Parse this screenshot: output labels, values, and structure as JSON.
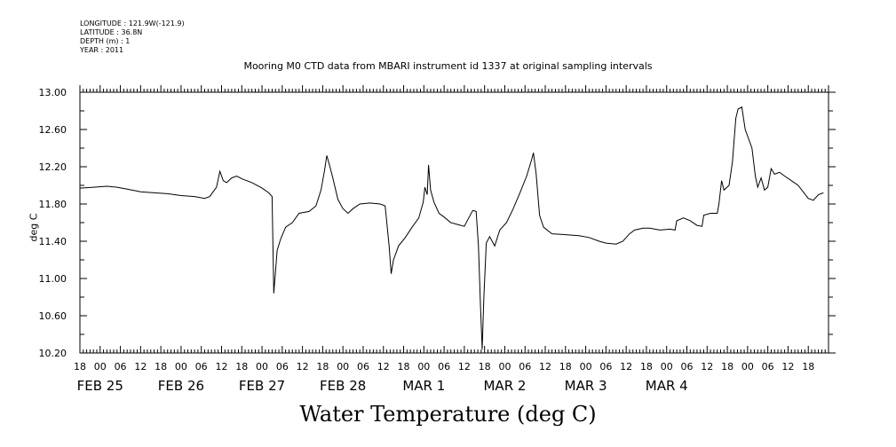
{
  "meta": {
    "longitude": "LONGITUDE : 121.9W(-121.9)",
    "latitude": "LATITUDE : 36.8N",
    "depth": "DEPTH (m) : 1",
    "year": "YEAR : 2011"
  },
  "chart_data": {
    "type": "line",
    "title": "Mooring M0 CTD data from MBARI instrument id 1337 at original sampling intervals",
    "xlabel": "Water Temperature (deg C)",
    "ylabel": "deg C",
    "ylim": [
      10.2,
      13.0
    ],
    "yticks": [
      "10.20",
      "10.60",
      "11.00",
      "11.40",
      "11.80",
      "12.20",
      "12.60",
      "13.00"
    ],
    "x_unit": "hours since 2011-02-24 18:00",
    "xlim": [
      0,
      222
    ],
    "hour_ticks": [
      "18",
      "00",
      "06",
      "12",
      "18",
      "00",
      "06",
      "12",
      "18",
      "00",
      "06",
      "12",
      "18",
      "00",
      "06",
      "12",
      "18",
      "00",
      "06",
      "12",
      "18",
      "00",
      "06",
      "12",
      "18",
      "00",
      "06",
      "12",
      "18",
      "00",
      "06",
      "12",
      "18",
      "00",
      "06",
      "12",
      "18"
    ],
    "date_labels": [
      {
        "label": "FEB 25",
        "x": 6
      },
      {
        "label": "FEB 26",
        "x": 30
      },
      {
        "label": "FEB 27",
        "x": 54
      },
      {
        "label": "FEB 28",
        "x": 78
      },
      {
        "label": "MAR  1",
        "x": 102
      },
      {
        "label": "MAR  2",
        "x": 126
      },
      {
        "label": "MAR  3",
        "x": 150
      },
      {
        "label": "MAR  4",
        "x": 174
      }
    ],
    "series": [
      {
        "values": [
          [
            0,
            11.97
          ],
          [
            4,
            11.98
          ],
          [
            8,
            11.99
          ],
          [
            11,
            11.98
          ],
          [
            14,
            11.96
          ],
          [
            18,
            11.93
          ],
          [
            22,
            11.92
          ],
          [
            26,
            11.91
          ],
          [
            30,
            11.89
          ],
          [
            34,
            11.88
          ],
          [
            37,
            11.86
          ],
          [
            38.5,
            11.88
          ],
          [
            40.5,
            11.98
          ],
          [
            41.5,
            12.15
          ],
          [
            42.5,
            12.05
          ],
          [
            43.5,
            12.03
          ],
          [
            45,
            12.08
          ],
          [
            46.5,
            12.1
          ],
          [
            48,
            12.07
          ],
          [
            51,
            12.03
          ],
          [
            54,
            11.97
          ],
          [
            56,
            11.92
          ],
          [
            57,
            11.88
          ],
          [
            57.5,
            10.84
          ],
          [
            58.5,
            11.3
          ],
          [
            59.5,
            11.42
          ],
          [
            61,
            11.55
          ],
          [
            63,
            11.6
          ],
          [
            65,
            11.7
          ],
          [
            68,
            11.72
          ],
          [
            70,
            11.78
          ],
          [
            71.5,
            11.95
          ],
          [
            72.5,
            12.15
          ],
          [
            73.2,
            12.32
          ],
          [
            74,
            12.22
          ],
          [
            75,
            12.08
          ],
          [
            76.5,
            11.85
          ],
          [
            78,
            11.75
          ],
          [
            79.5,
            11.7
          ],
          [
            81,
            11.75
          ],
          [
            83,
            11.8
          ],
          [
            86,
            11.81
          ],
          [
            89,
            11.8
          ],
          [
            90.5,
            11.78
          ],
          [
            91,
            11.6
          ],
          [
            91.7,
            11.35
          ],
          [
            92.3,
            11.05
          ],
          [
            93,
            11.2
          ],
          [
            94.5,
            11.35
          ],
          [
            96.5,
            11.44
          ],
          [
            98.5,
            11.55
          ],
          [
            100.5,
            11.65
          ],
          [
            101.8,
            11.82
          ],
          [
            102.3,
            11.98
          ],
          [
            103,
            11.9
          ],
          [
            103.4,
            12.22
          ],
          [
            104,
            11.95
          ],
          [
            105,
            11.82
          ],
          [
            106.5,
            11.7
          ],
          [
            108,
            11.66
          ],
          [
            110,
            11.6
          ],
          [
            112,
            11.58
          ],
          [
            114,
            11.56
          ],
          [
            115,
            11.63
          ],
          [
            116.5,
            11.73
          ],
          [
            117.5,
            11.72
          ],
          [
            118.2,
            11.35
          ],
          [
            118.8,
            10.7
          ],
          [
            119.3,
            10.24
          ],
          [
            119.8,
            10.8
          ],
          [
            120.5,
            11.38
          ],
          [
            121.5,
            11.45
          ],
          [
            123,
            11.35
          ],
          [
            124.5,
            11.52
          ],
          [
            126.5,
            11.6
          ],
          [
            128.5,
            11.75
          ],
          [
            130.5,
            11.92
          ],
          [
            132.5,
            12.1
          ],
          [
            134,
            12.28
          ],
          [
            134.5,
            12.35
          ],
          [
            135.3,
            12.12
          ],
          [
            136.3,
            11.68
          ],
          [
            137.5,
            11.55
          ],
          [
            140,
            11.48
          ],
          [
            144,
            11.47
          ],
          [
            148,
            11.46
          ],
          [
            151,
            11.44
          ],
          [
            154,
            11.4
          ],
          [
            156,
            11.38
          ],
          [
            159,
            11.37
          ],
          [
            161,
            11.4
          ],
          [
            163,
            11.48
          ],
          [
            164.5,
            11.52
          ],
          [
            167,
            11.54
          ],
          [
            169,
            11.54
          ],
          [
            172,
            11.52
          ],
          [
            175,
            11.53
          ],
          [
            176.5,
            11.52
          ],
          [
            177,
            11.62
          ],
          [
            179,
            11.65
          ],
          [
            181,
            11.62
          ],
          [
            183,
            11.57
          ],
          [
            184.5,
            11.56
          ],
          [
            185,
            11.68
          ],
          [
            187,
            11.7
          ],
          [
            189,
            11.7
          ],
          [
            189.5,
            11.8
          ],
          [
            190.3,
            12.05
          ],
          [
            191,
            11.95
          ],
          [
            192.5,
            12.0
          ],
          [
            193.5,
            12.25
          ],
          [
            194.5,
            12.72
          ],
          [
            195.2,
            12.82
          ],
          [
            196.3,
            12.84
          ],
          [
            197.3,
            12.6
          ],
          [
            198.3,
            12.5
          ],
          [
            199.3,
            12.4
          ],
          [
            200.3,
            12.1
          ],
          [
            201,
            11.98
          ],
          [
            202,
            12.08
          ],
          [
            203,
            11.95
          ],
          [
            204,
            11.98
          ],
          [
            205,
            12.18
          ],
          [
            206,
            12.12
          ],
          [
            207.5,
            12.14
          ],
          [
            209,
            12.1
          ],
          [
            211,
            12.05
          ],
          [
            213,
            12.0
          ],
          [
            214.5,
            11.93
          ],
          [
            216,
            11.86
          ],
          [
            217.5,
            11.84
          ],
          [
            219,
            11.9
          ],
          [
            220.5,
            11.92
          ]
        ]
      }
    ]
  }
}
